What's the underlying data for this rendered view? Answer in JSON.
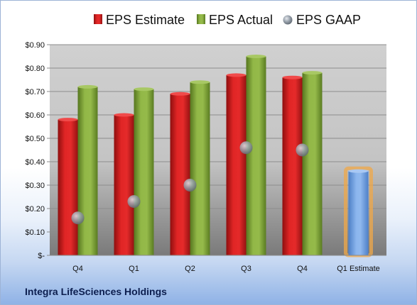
{
  "company_name": "Integra LifeSciences Holdings",
  "chart_data": {
    "type": "bar",
    "categories": [
      "Q4",
      "Q1",
      "Q2",
      "Q3",
      "Q4",
      "Q1 Estimate"
    ],
    "y_tick_labels": [
      "$-",
      "$0.10",
      "$0.20",
      "$0.30",
      "$0.40",
      "$0.50",
      "$0.60",
      "$0.70",
      "$0.80",
      "$0.90"
    ],
    "ylim": [
      0,
      0.9
    ],
    "grid": true,
    "legend_position": "top",
    "series": [
      {
        "name": "EPS Estimate",
        "kind": "bar",
        "color": "#cc1f1f",
        "values": [
          0.58,
          0.6,
          0.69,
          0.77,
          0.76,
          null
        ]
      },
      {
        "name": "EPS Actual",
        "kind": "bar",
        "color": "#7fa33b",
        "values": [
          0.72,
          0.71,
          0.74,
          0.85,
          0.78,
          null
        ]
      },
      {
        "name": "EPS GAAP",
        "kind": "marker",
        "color": "#9aa5b1",
        "values": [
          0.16,
          0.23,
          0.3,
          0.46,
          0.45,
          null
        ]
      },
      {
        "name": "Q1 Estimate",
        "kind": "bar",
        "color": "#6f9fe0",
        "highlight": "#f0a848",
        "values": [
          null,
          null,
          null,
          null,
          null,
          0.36
        ]
      }
    ]
  }
}
